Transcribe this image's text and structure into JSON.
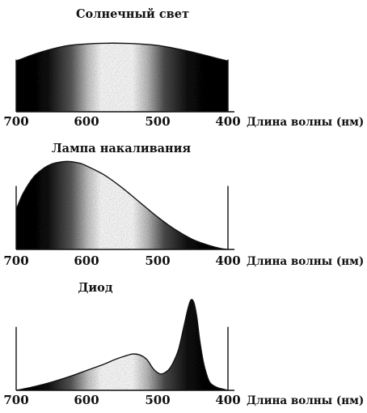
{
  "chart_data": [
    {
      "type": "area",
      "title": "Солнечный свет",
      "xlabel": "Длина волны (нм)",
      "ylabel": "",
      "xlim": [
        700,
        400
      ],
      "ylim": [
        0,
        1
      ],
      "x_ticks": [
        "700",
        "600",
        "500",
        "400"
      ],
      "x": [
        700,
        675,
        650,
        625,
        600,
        575,
        550,
        525,
        500,
        475,
        450,
        425,
        400
      ],
      "values": [
        0.68,
        0.77,
        0.84,
        0.89,
        0.91,
        0.92,
        0.92,
        0.91,
        0.89,
        0.85,
        0.8,
        0.74,
        0.68
      ],
      "grid": false
    },
    {
      "type": "area",
      "title": "Лампа накаливания",
      "xlabel": "Длина волны (нм)",
      "ylabel": "",
      "xlim": [
        700,
        400
      ],
      "ylim": [
        0,
        1
      ],
      "x_ticks": [
        "700",
        "600",
        "500",
        "400"
      ],
      "x": [
        700,
        690,
        675,
        660,
        650,
        640,
        625,
        610,
        600,
        575,
        550,
        525,
        500,
        475,
        450,
        425,
        410,
        400
      ],
      "values": [
        0.44,
        0.62,
        0.8,
        0.9,
        0.94,
        0.96,
        0.97,
        0.95,
        0.92,
        0.82,
        0.68,
        0.52,
        0.36,
        0.22,
        0.11,
        0.04,
        0.01,
        0.0
      ],
      "grid": false
    },
    {
      "type": "area",
      "title": "Диод",
      "xlabel": "Длина волны (нм)",
      "ylabel": "",
      "xlim": [
        700,
        400
      ],
      "ylim": [
        0,
        1
      ],
      "x_ticks": [
        "700",
        "600",
        "500",
        "400"
      ],
      "x": [
        700,
        675,
        650,
        625,
        600,
        575,
        560,
        545,
        535,
        525,
        515,
        505,
        495,
        485,
        478,
        470,
        462,
        456,
        452,
        448,
        444,
        440,
        435,
        430,
        425,
        415,
        405,
        400
      ],
      "values": [
        0.0,
        0.04,
        0.09,
        0.15,
        0.22,
        0.29,
        0.34,
        0.38,
        0.4,
        0.39,
        0.34,
        0.23,
        0.18,
        0.22,
        0.3,
        0.45,
        0.72,
        0.92,
        1.0,
        0.96,
        0.8,
        0.55,
        0.32,
        0.17,
        0.08,
        0.03,
        0.01,
        0.0
      ],
      "grid": false
    }
  ]
}
